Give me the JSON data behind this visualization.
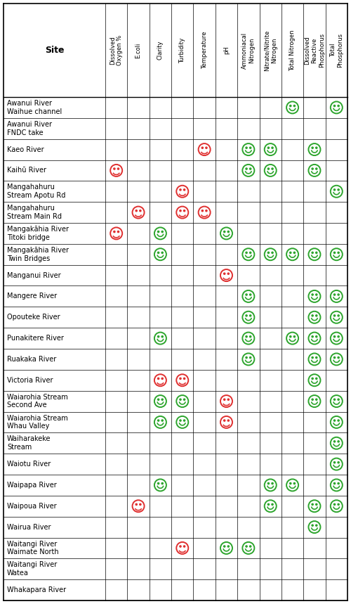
{
  "columns": [
    "Site",
    "Dissolved\nOxygen %",
    "E.coli",
    "Clarity",
    "Turbidity",
    "Temperature",
    "pH",
    "Ammoniacal\nNitrogen",
    "Nitrate/Nitrite\nNitrogen",
    "Total Nitrogen",
    "Dissolved\nReactive\nPhosphorus",
    "Total\nPhosphorus"
  ],
  "rows": [
    {
      "site": "Awanui River\nWaihue channel",
      "data": [
        null,
        null,
        null,
        null,
        null,
        null,
        null,
        null,
        "G",
        null,
        "G"
      ]
    },
    {
      "site": "Awanui River\nFNDC take",
      "data": [
        null,
        null,
        null,
        null,
        null,
        null,
        null,
        null,
        null,
        null,
        null
      ]
    },
    {
      "site": "Kaeo River",
      "data": [
        null,
        null,
        null,
        null,
        "R",
        null,
        "G",
        "G",
        null,
        "G",
        null
      ]
    },
    {
      "site": "Kaihū River",
      "data": [
        "R",
        null,
        null,
        null,
        null,
        null,
        "G",
        "G",
        null,
        "G",
        null
      ]
    },
    {
      "site": "Mangahahuru\nStream Apotu Rd",
      "data": [
        null,
        null,
        null,
        "R",
        null,
        null,
        null,
        null,
        null,
        null,
        "G"
      ]
    },
    {
      "site": "Mangahahuru\nStream Main Rd",
      "data": [
        null,
        "R",
        null,
        "R",
        "R",
        null,
        null,
        null,
        null,
        null,
        null
      ]
    },
    {
      "site": "Mangakāhia River\nTitoki bridge",
      "data": [
        "R",
        null,
        "G",
        null,
        null,
        "G",
        null,
        null,
        null,
        null,
        null
      ]
    },
    {
      "site": "Mangakāhia River\nTwin Bridges",
      "data": [
        null,
        null,
        "G",
        null,
        null,
        null,
        "G",
        "G",
        "G",
        "G",
        "G"
      ]
    },
    {
      "site": "Manganui River",
      "data": [
        null,
        null,
        null,
        null,
        null,
        "R",
        null,
        null,
        null,
        null,
        null
      ]
    },
    {
      "site": "Mangere River",
      "data": [
        null,
        null,
        null,
        null,
        null,
        null,
        "G",
        null,
        null,
        "G",
        "G"
      ]
    },
    {
      "site": "Opouteke River",
      "data": [
        null,
        null,
        null,
        null,
        null,
        null,
        "G",
        null,
        null,
        "G",
        "G"
      ]
    },
    {
      "site": "Punakitere River",
      "data": [
        null,
        null,
        "G",
        null,
        null,
        null,
        "G",
        null,
        "G",
        "G",
        "G"
      ]
    },
    {
      "site": "Ruakaka River",
      "data": [
        null,
        null,
        null,
        null,
        null,
        null,
        "G",
        null,
        null,
        "G",
        "G"
      ]
    },
    {
      "site": "Victoria River",
      "data": [
        null,
        null,
        "R",
        "R",
        null,
        null,
        null,
        null,
        null,
        "G",
        null
      ]
    },
    {
      "site": "Waiarohia Stream\nSecond Ave",
      "data": [
        null,
        null,
        "G",
        "G",
        null,
        "R",
        null,
        null,
        null,
        "G",
        "G"
      ]
    },
    {
      "site": "Waiarohia Stream\nWhau Valley",
      "data": [
        null,
        null,
        "G",
        "G",
        null,
        "R",
        null,
        null,
        null,
        null,
        "G"
      ]
    },
    {
      "site": "Waiharakeke\nStream",
      "data": [
        null,
        null,
        null,
        null,
        null,
        null,
        null,
        null,
        null,
        null,
        "G"
      ]
    },
    {
      "site": "Waiotu River",
      "data": [
        null,
        null,
        null,
        null,
        null,
        null,
        null,
        null,
        null,
        null,
        "G"
      ]
    },
    {
      "site": "Waipapa River",
      "data": [
        null,
        null,
        "G",
        null,
        null,
        null,
        null,
        "G",
        "G",
        null,
        "G"
      ]
    },
    {
      "site": "Waipoua River",
      "data": [
        null,
        "R",
        null,
        null,
        null,
        null,
        null,
        "G",
        null,
        "G",
        "G"
      ]
    },
    {
      "site": "Wairua River",
      "data": [
        null,
        null,
        null,
        null,
        null,
        null,
        null,
        null,
        null,
        "G",
        null
      ]
    },
    {
      "site": "Waitangi River\nWaimate North",
      "data": [
        null,
        null,
        null,
        "R",
        null,
        "G",
        "G",
        null,
        null,
        null,
        null
      ]
    },
    {
      "site": "Waitangi River\nWatea",
      "data": [
        null,
        null,
        null,
        null,
        null,
        null,
        null,
        null,
        null,
        null,
        null
      ]
    },
    {
      "site": "Whakapara River",
      "data": [
        null,
        null,
        null,
        null,
        null,
        null,
        null,
        null,
        null,
        null,
        null
      ]
    }
  ],
  "green_color": "#2da52d",
  "red_color": "#e03030",
  "text_color": "#000000",
  "fig_w": 5.0,
  "fig_h": 8.59,
  "dpi": 100
}
